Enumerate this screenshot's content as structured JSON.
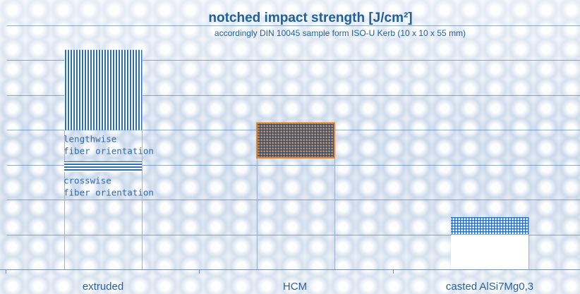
{
  "chart_data": {
    "type": "bar",
    "title": "notched impact strength [J/cm²]",
    "subtitle": "accordingly DIN  10045  sample form ISO-U Kerb (10 x 10 x 55 mm)",
    "xlabel": "",
    "ylabel": "",
    "grid": true,
    "categories": [
      "extruded",
      "HCM",
      "casted AlSi7Mg0,3"
    ],
    "bars": [
      {
        "category": "extruded",
        "low": 4.0,
        "high": 6.3,
        "pattern": "vertical-lines",
        "color": "#2a6fb5",
        "label": "lengthwise\nfiber orientation"
      },
      {
        "category": "extruded",
        "low": 2.8,
        "high": 3.1,
        "pattern": "horizontal-lines",
        "color": "#2a6fb5",
        "label": "crosswise\nfiber orientation"
      },
      {
        "category": "HCM",
        "low": 3.2,
        "high": 4.2,
        "pattern": "grid",
        "color": "#9c6a3f",
        "label": ""
      },
      {
        "category": "casted AlSi7Mg0,3",
        "low": 1.0,
        "high": 1.5,
        "pattern": "grid",
        "color": "#2a6fb5",
        "label": ""
      }
    ],
    "ylim": [
      0,
      7
    ]
  }
}
